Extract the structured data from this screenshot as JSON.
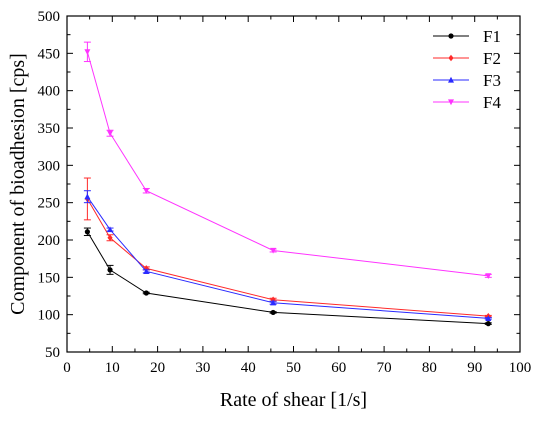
{
  "chart_data": {
    "type": "line",
    "title": "",
    "xlabel": "Rate of shear [1/s]",
    "ylabel": "Component of bioadhesion [cps]",
    "xlim": [
      0,
      100
    ],
    "ylim": [
      50,
      500
    ],
    "xticks": [
      0,
      10,
      20,
      30,
      40,
      50,
      60,
      70,
      80,
      90,
      100
    ],
    "yticks": [
      50,
      100,
      150,
      200,
      250,
      300,
      350,
      400,
      450,
      500
    ],
    "x_minor_step": 5,
    "y_minor_step": 25,
    "grid": false,
    "legend_position": "top-right",
    "series": [
      {
        "name": "F1",
        "color": "#000000",
        "marker": "circle",
        "x": [
          4.5,
          9.5,
          17.5,
          45.5,
          93
        ],
        "values": [
          211,
          160,
          129,
          103,
          88
        ],
        "errors": [
          5,
          6,
          1,
          1,
          1
        ]
      },
      {
        "name": "F2",
        "color": "#ff2a2a",
        "marker": "diamond",
        "x": [
          4.5,
          9.5,
          17.5,
          45.5,
          93
        ],
        "values": [
          255,
          203,
          162,
          120,
          98
        ],
        "errors": [
          28,
          4,
          2,
          2,
          1
        ]
      },
      {
        "name": "F3",
        "color": "#2a2aff",
        "marker": "triangle-up",
        "x": [
          4.5,
          9.5,
          17.5,
          45.5,
          93
        ],
        "values": [
          258,
          214,
          158,
          116,
          95
        ],
        "errors": [
          8,
          2,
          2,
          2,
          1
        ]
      },
      {
        "name": "F4",
        "color": "#ff33ff",
        "marker": "triangle-down",
        "x": [
          4.5,
          9.5,
          17.5,
          45.5,
          93
        ],
        "values": [
          452,
          343,
          266,
          186,
          152
        ],
        "errors": [
          13,
          4,
          3,
          2,
          2
        ]
      }
    ]
  }
}
